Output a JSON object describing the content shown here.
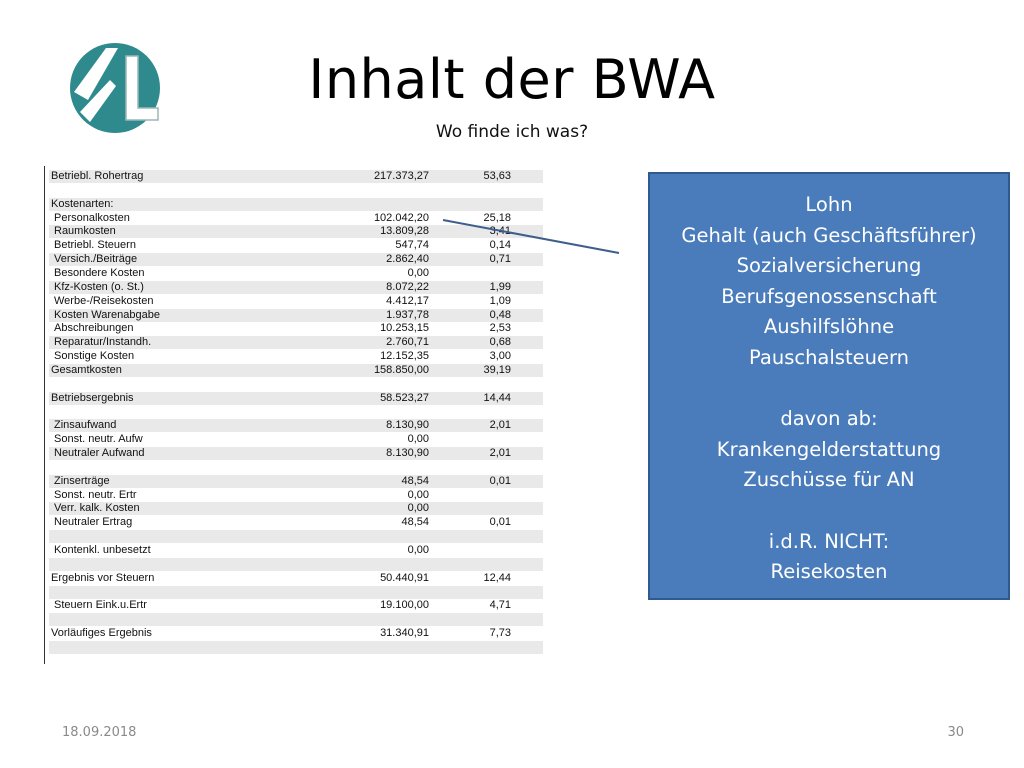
{
  "slide": {
    "title": "Inhalt der BWA",
    "subtitle": "Wo finde ich was?",
    "date": "18.09.2018",
    "page_number": "30"
  },
  "logo": {
    "icon": "company-logo-L",
    "colors": {
      "teal": "#2f8a8a",
      "white": "#ffffff"
    }
  },
  "table_rows": [
    {
      "label": "Betriebl. Rohertrag",
      "v1": "217.373,27",
      "v2": "53,63",
      "shade": true,
      "indent": false
    },
    {
      "label": "",
      "v1": "",
      "v2": "",
      "shade": false,
      "indent": false
    },
    {
      "label": "Kostenarten:",
      "v1": "",
      "v2": "",
      "shade": true,
      "indent": false
    },
    {
      "label": "Personalkosten",
      "v1": "102.042,20",
      "v2": "25,18",
      "shade": false,
      "indent": true
    },
    {
      "label": "Raumkosten",
      "v1": "13.809,28",
      "v2": "3,41",
      "shade": true,
      "indent": true
    },
    {
      "label": "Betriebl. Steuern",
      "v1": "547,74",
      "v2": "0,14",
      "shade": false,
      "indent": true
    },
    {
      "label": "Versich./Beiträge",
      "v1": "2.862,40",
      "v2": "0,71",
      "shade": true,
      "indent": true
    },
    {
      "label": "Besondere Kosten",
      "v1": "0,00",
      "v2": "",
      "shade": false,
      "indent": true
    },
    {
      "label": "Kfz-Kosten (o. St.)",
      "v1": "8.072,22",
      "v2": "1,99",
      "shade": true,
      "indent": true
    },
    {
      "label": "Werbe-/Reisekosten",
      "v1": "4.412,17",
      "v2": "1,09",
      "shade": false,
      "indent": true
    },
    {
      "label": "Kosten Warenabgabe",
      "v1": "1.937,78",
      "v2": "0,48",
      "shade": true,
      "indent": true
    },
    {
      "label": "Abschreibungen",
      "v1": "10.253,15",
      "v2": "2,53",
      "shade": false,
      "indent": true
    },
    {
      "label": "Reparatur/Instandh.",
      "v1": "2.760,71",
      "v2": "0,68",
      "shade": true,
      "indent": true
    },
    {
      "label": "Sonstige Kosten",
      "v1": "12.152,35",
      "v2": "3,00",
      "shade": false,
      "indent": true
    },
    {
      "label": "Gesamtkosten",
      "v1": "158.850,00",
      "v2": "39,19",
      "shade": true,
      "indent": false
    },
    {
      "label": "",
      "v1": "",
      "v2": "",
      "shade": false,
      "indent": false
    },
    {
      "label": "Betriebsergebnis",
      "v1": "58.523,27",
      "v2": "14,44",
      "shade": true,
      "indent": false
    },
    {
      "label": "",
      "v1": "",
      "v2": "",
      "shade": false,
      "indent": false
    },
    {
      "label": "Zinsaufwand",
      "v1": "8.130,90",
      "v2": "2,01",
      "shade": true,
      "indent": true
    },
    {
      "label": "Sonst. neutr. Aufw",
      "v1": "0,00",
      "v2": "",
      "shade": false,
      "indent": true
    },
    {
      "label": "Neutraler Aufwand",
      "v1": "8.130,90",
      "v2": "2,01",
      "shade": true,
      "indent": true
    },
    {
      "label": "",
      "v1": "",
      "v2": "",
      "shade": false,
      "indent": false
    },
    {
      "label": "Zinserträge",
      "v1": "48,54",
      "v2": "0,01",
      "shade": true,
      "indent": true
    },
    {
      "label": "Sonst. neutr. Ertr",
      "v1": "0,00",
      "v2": "",
      "shade": false,
      "indent": true
    },
    {
      "label": "Verr. kalk. Kosten",
      "v1": "0,00",
      "v2": "",
      "shade": true,
      "indent": true
    },
    {
      "label": "Neutraler Ertrag",
      "v1": "48,54",
      "v2": "0,01",
      "shade": false,
      "indent": true
    },
    {
      "label": "",
      "v1": "",
      "v2": "",
      "shade": true,
      "indent": false
    },
    {
      "label": "Kontenkl. unbesetzt",
      "v1": "0,00",
      "v2": "",
      "shade": false,
      "indent": true
    },
    {
      "label": "",
      "v1": "",
      "v2": "",
      "shade": true,
      "indent": false
    },
    {
      "label": "Ergebnis vor Steuern",
      "v1": "50.440,91",
      "v2": "12,44",
      "shade": false,
      "indent": false
    },
    {
      "label": "",
      "v1": "",
      "v2": "",
      "shade": true,
      "indent": false
    },
    {
      "label": "Steuern Eink.u.Ertr",
      "v1": "19.100,00",
      "v2": "4,71",
      "shade": false,
      "indent": true
    },
    {
      "label": "",
      "v1": "",
      "v2": "",
      "shade": true,
      "indent": false
    },
    {
      "label": "Vorläufiges Ergebnis",
      "v1": "31.340,91",
      "v2": "7,73",
      "shade": false,
      "indent": false
    },
    {
      "label": "",
      "v1": "",
      "v2": "",
      "shade": true,
      "indent": false
    }
  ],
  "callout": {
    "lines": [
      "Lohn",
      "Gehalt (auch Geschäftsführer)",
      "Sozialversicherung",
      "Berufsgenossenschaft",
      "Aushilfslöhne",
      "Pauschalsteuern",
      "",
      "davon ab:",
      "Krankengelderstattung",
      "Zuschüsse für AN",
      "",
      "i.d.R. NICHT:",
      "Reisekosten"
    ],
    "colors": {
      "fill": "#4a7cbc",
      "border": "#2f5a8e",
      "text": "#ffffff",
      "connector": "#3d5f8c"
    }
  }
}
